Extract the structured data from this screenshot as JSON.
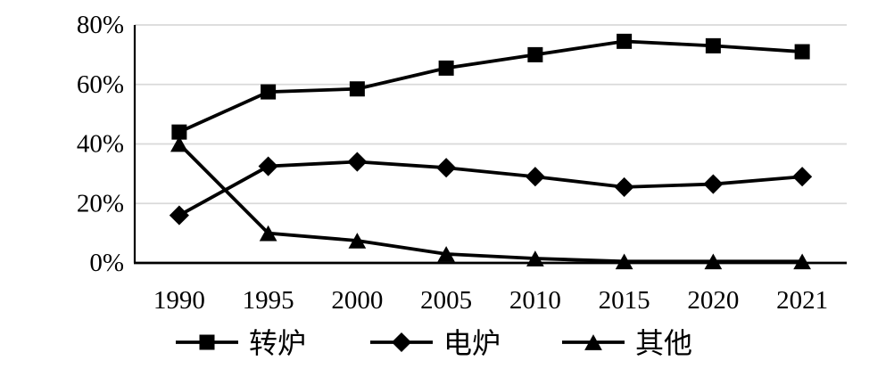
{
  "chart_data": {
    "type": "line",
    "title": "",
    "xlabel": "",
    "ylabel": "",
    "categories": [
      "1990",
      "1995",
      "2000",
      "2005",
      "2010",
      "2015",
      "2020",
      "2021"
    ],
    "series": [
      {
        "name": "转炉",
        "marker": "square",
        "values": [
          44,
          57.5,
          58.5,
          65.5,
          70,
          74.5,
          73,
          71
        ]
      },
      {
        "name": "电炉",
        "marker": "diamond",
        "values": [
          16,
          32.5,
          34,
          32,
          29,
          25.5,
          26.5,
          29
        ]
      },
      {
        "name": "其他",
        "marker": "triangle",
        "values": [
          40,
          10,
          7.5,
          3,
          1.5,
          0.5,
          0.5,
          0.5
        ]
      }
    ],
    "ylim": [
      0,
      80
    ],
    "yticks": [
      {
        "value": 0,
        "label": "0%"
      },
      {
        "value": 20,
        "label": "20%"
      },
      {
        "value": 40,
        "label": "40%"
      },
      {
        "value": 60,
        "label": "60%"
      },
      {
        "value": 80,
        "label": "80%"
      }
    ],
    "grid": "horizontal",
    "legend_position": "bottom",
    "colors": {
      "series": "#000000",
      "axis": "#000000",
      "gridline": "#d9d9d9",
      "background": "#ffffff"
    }
  }
}
